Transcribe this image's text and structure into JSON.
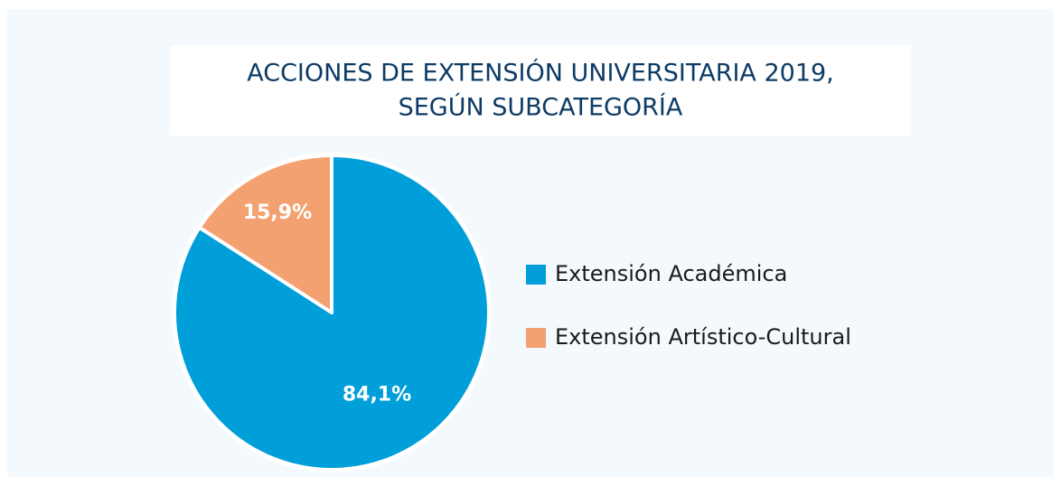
{
  "chart_data": {
    "type": "pie",
    "title": [
      "ACCIONES DE EXTENSIÓN UNIVERSITARIA 2019,",
      "SEGÚN SUBCATEGORÍA"
    ],
    "categories": [
      "Extensión Académica",
      "Extensión Artístico-Cultural"
    ],
    "values": [
      84.1,
      15.9
    ],
    "value_labels": [
      "84,1%",
      "15,9%"
    ],
    "colors": [
      "#009fda",
      "#f4a172"
    ],
    "legend": "right"
  }
}
